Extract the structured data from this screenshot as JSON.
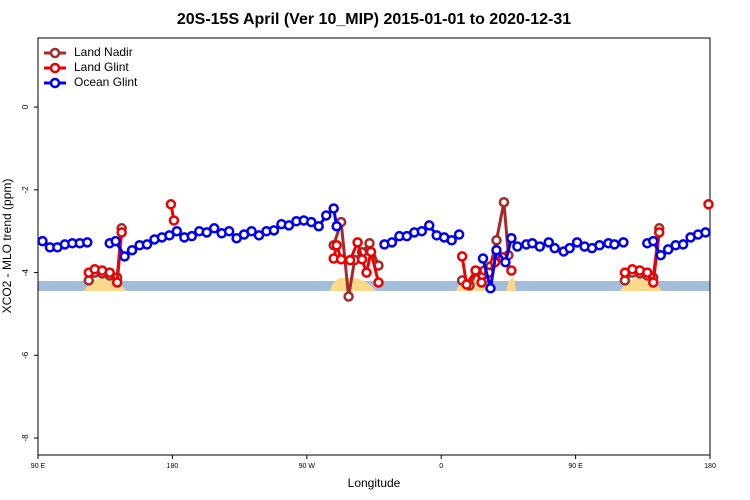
{
  "chart_data": {
    "type": "line",
    "title": "20S-15S April (Ver 10_MIP)   2015-01-01 to 2020-12-31",
    "x_label": "Longitude",
    "y_label": "XCO2 - MLO trend (ppm)",
    "xlim": [
      90,
      540
    ],
    "ylim": [
      -8.41,
      1.67
    ],
    "xticks": [
      {
        "value": 90,
        "label": "90 E"
      },
      {
        "value": 180,
        "label": "180"
      },
      {
        "value": 270,
        "label": "90 W"
      },
      {
        "value": 360,
        "label": "0"
      },
      {
        "value": 450,
        "label": "90 E"
      },
      {
        "value": 540,
        "label": "180"
      }
    ],
    "yticks": [
      0,
      -2,
      -4,
      -6,
      -8
    ],
    "legend": "topleft",
    "series": [
      {
        "name": "Land Nadir",
        "color": "#a52a2a",
        "x": [
          124,
          128,
          133,
          138,
          143,
          146,
          200,
          288,
          293,
          298,
          302,
          307,
          312,
          318,
          340,
          374,
          379,
          384,
          389,
          393,
          397,
          402,
          405,
          440,
          483,
          488,
          493,
          498,
          502,
          506
        ],
        "values": [
          -4.19,
          -4.0,
          -4.02,
          -4.07,
          -4.12,
          -2.93,
          null,
          -3.34,
          -2.78,
          -4.58,
          -3.7,
          -3.51,
          -3.29,
          -3.83,
          null,
          -4.19,
          -4.31,
          -3.97,
          -3.95,
          -3.85,
          -3.22,
          -2.3,
          -3.58,
          null,
          -4.19,
          -4.0,
          -4.02,
          -4.07,
          -4.12,
          -2.93
        ]
      },
      {
        "name": "Land Glint",
        "color": "#ee0000",
        "x": [
          124,
          128,
          133,
          138,
          143,
          146,
          160,
          179,
          181,
          230,
          288,
          290,
          293,
          299,
          304,
          307,
          310,
          313,
          318,
          340,
          374,
          377,
          383,
          387,
          392,
          396,
          401,
          407,
          440,
          483,
          488,
          493,
          498,
          502,
          506,
          520,
          539
        ],
        "values": [
          -4.0,
          -3.92,
          -3.95,
          -4.0,
          -4.24,
          -3.03,
          null,
          -2.35,
          -2.74,
          null,
          -3.66,
          -3.34,
          -3.68,
          -3.7,
          -3.27,
          -3.68,
          -4.0,
          -3.5,
          -4.24,
          null,
          -3.61,
          -4.29,
          -3.95,
          -4.24,
          -4.0,
          -3.75,
          -3.63,
          -3.95,
          null,
          -4.0,
          -3.92,
          -3.95,
          -4.0,
          -4.24,
          -3.03,
          null,
          -2.35
        ]
      },
      {
        "name": "Ocean Glint",
        "color": "#0000ee",
        "x": [
          93,
          98,
          103,
          108,
          113,
          118,
          123,
          130,
          138,
          142,
          148,
          153,
          158,
          163,
          168,
          173,
          178,
          183,
          188,
          193,
          198,
          203,
          208,
          213,
          218,
          223,
          228,
          233,
          238,
          243,
          248,
          253,
          258,
          263,
          268,
          273,
          278,
          283,
          288,
          290,
          300,
          322,
          327,
          332,
          337,
          342,
          347,
          352,
          357,
          362,
          367,
          372,
          380,
          388,
          393,
          397,
          403,
          407,
          411,
          417,
          421,
          426,
          432,
          436,
          442,
          446,
          451,
          456,
          461,
          466,
          472,
          476,
          482,
          490,
          498,
          502,
          507,
          512,
          517,
          522,
          527,
          532,
          537
        ],
        "values": [
          -3.24,
          -3.39,
          -3.39,
          -3.32,
          -3.29,
          -3.29,
          -3.27,
          null,
          -3.29,
          -3.24,
          -3.61,
          -3.46,
          -3.34,
          -3.32,
          -3.2,
          -3.15,
          -3.1,
          -3.0,
          -3.15,
          -3.12,
          -3.0,
          -3.03,
          -2.93,
          -3.05,
          -3.0,
          -3.17,
          -3.08,
          -3.0,
          -3.1,
          -3.0,
          -2.98,
          -2.83,
          -2.86,
          -2.76,
          -2.74,
          -2.78,
          -2.88,
          -2.62,
          -2.45,
          -2.88,
          null,
          -3.32,
          -3.27,
          -3.12,
          -3.12,
          -3.03,
          -3.0,
          -2.86,
          -3.1,
          -3.15,
          -3.22,
          -3.08,
          null,
          -3.66,
          -4.38,
          -3.46,
          -3.75,
          -3.17,
          -3.37,
          -3.32,
          -3.29,
          -3.37,
          -3.27,
          -3.41,
          -3.49,
          -3.41,
          -3.27,
          -3.37,
          -3.41,
          -3.34,
          -3.29,
          -3.32,
          -3.27,
          null,
          -3.29,
          -3.24,
          -3.58,
          -3.44,
          -3.34,
          -3.32,
          -3.15,
          -3.08,
          -3.03
        ]
      }
    ]
  }
}
